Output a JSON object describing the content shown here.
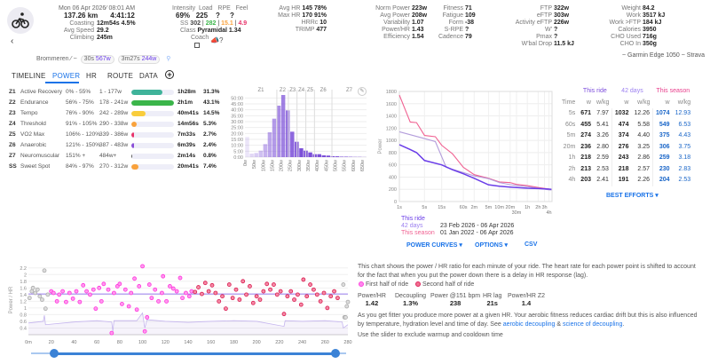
{
  "header": {
    "date": "Mon 06 Apr 2026",
    "time": "08:01 AM",
    "distance": "137.26 km",
    "duration": "4:41:12",
    "coasting_label": "Coasting",
    "coasting": "12m54s 4.5%",
    "avg_speed_label": "Avg Speed",
    "avg_speed": "29.2",
    "climbing_label": "Climbing",
    "climbing": "245m",
    "intensity_label": "Intensity",
    "intensity": "69%",
    "load_label": "Load",
    "load": "225",
    "rpe_label": "RPE",
    "rpe": "?",
    "feel_label": "Feel",
    "feel": "?",
    "ss_label": "SS",
    "ss": "302",
    "ss_g": "282",
    "ss_o": "15.1",
    "ss_r": "4.9",
    "class_label": "Class",
    "class": "Pyramidal 1.34",
    "coach_label": "Coach",
    "avg_hr_label": "Avg HR",
    "avg_hr": "145 78%",
    "max_hr_label": "Max HR",
    "max_hr": "170 91%",
    "hrrc_label": "HRRc",
    "hrrc": "10",
    "trimp_label": "TRIMP",
    "trimp": "477",
    "col4": [
      [
        "Norm Power",
        "223w"
      ],
      [
        "Avg Power",
        "208w"
      ],
      [
        "Variability",
        "1.07"
      ],
      [
        "Power/HR",
        "1.43"
      ],
      [
        "Efficiency",
        "1.54"
      ]
    ],
    "col5": [
      [
        "Fitness",
        "71"
      ],
      [
        "Fatigue",
        "109"
      ],
      [
        "Form",
        "-38"
      ],
      [
        "S-RPE",
        "?"
      ],
      [
        "Cadence",
        "79"
      ]
    ],
    "col6": [
      [
        "FTP",
        "322w"
      ],
      [
        "eFTP",
        "303w"
      ],
      [
        "Activity eFTP",
        "226w"
      ],
      [
        "W'",
        "?"
      ],
      [
        "Pmax",
        "?"
      ],
      [
        "W'bal Drop",
        "11.5 kJ"
      ]
    ],
    "col7": [
      [
        "Weight",
        "84.2"
      ],
      [
        "Work",
        "3517 kJ"
      ],
      [
        "Work >FTP",
        "184 kJ"
      ],
      [
        "Calories",
        "3950"
      ],
      [
        "CHO Used",
        "716g"
      ],
      [
        "CHO In",
        "350g"
      ]
    ],
    "device": "~ Garmin Edge 1050 ~ Strava",
    "segment": "Brommeren",
    "best1_t": "30s",
    "best1_w": "567w",
    "best2_t": "3m27s",
    "best2_w": "244w"
  },
  "tabs": [
    "TIMELINE",
    "POWER",
    "HR",
    "ROUTE",
    "DATA"
  ],
  "zones": [
    {
      "z": "Z1",
      "name": "Active Recovery",
      "pct": "0% - 55%",
      "w": "1 - 177w",
      "time": "1h28m",
      "share": "31.3%",
      "fill": 0.73,
      "color": "#3fb39a"
    },
    {
      "z": "Z2",
      "name": "Endurance",
      "pct": "56% - 75%",
      "w": "178 - 241w",
      "time": "2h1m",
      "share": "43.1%",
      "fill": 1.0,
      "color": "#3bb54a"
    },
    {
      "z": "Z3",
      "name": "Tempo",
      "pct": "76% - 90%",
      "w": "242 - 289w",
      "time": "40m41s",
      "share": "14.5%",
      "fill": 0.34,
      "color": "#f9cd3c"
    },
    {
      "z": "Z4",
      "name": "Threshold",
      "pct": "91% - 105%",
      "w": "290 - 338w",
      "time": "14m56s",
      "share": "5.3%",
      "fill": 0.12,
      "color": "#f9a23c"
    },
    {
      "z": "Z5",
      "name": "VO2 Max",
      "pct": "106% - 120%",
      "w": "339 - 386w",
      "time": "7m33s",
      "share": "2.7%",
      "fill": 0.06,
      "color": "#e8336b"
    },
    {
      "z": "Z6",
      "name": "Anaerobic",
      "pct": "121% - 150%",
      "w": "387 - 483w",
      "time": "6m39s",
      "share": "2.4%",
      "fill": 0.055,
      "color": "#8a4fd8"
    },
    {
      "z": "Z7",
      "name": "Neuromuscular",
      "pct": "151% +",
      "w": "484w+",
      "time": "2m14s",
      "share": "0.8%",
      "fill": 0.02,
      "color": "#555"
    },
    {
      "z": "SS",
      "name": "Sweet Spot",
      "pct": "84% - 97%",
      "w": "270 - 312w",
      "time": "20m41s",
      "share": "7.4%",
      "fill": 0.17,
      "color": "#f9a23c"
    }
  ],
  "chart_data": [
    {
      "type": "bar",
      "id": "power-histogram",
      "bin_width_w": 25,
      "zone_labels": [
        "Z1",
        "Z2",
        "Z3",
        "Z4",
        "Z5",
        "Z6",
        "Z7"
      ],
      "zone_bounds_w": [
        177,
        241,
        289,
        338,
        386,
        483
      ],
      "values_min": [
        17,
        3,
        3.5,
        5.5,
        11,
        21,
        32.5,
        43.5,
        52.5,
        39.5,
        21.5,
        13,
        7.5,
        5.5,
        4,
        2.5,
        2.5,
        1.5,
        1.3,
        0.8,
        0.7,
        0.4,
        0.4,
        0.3,
        0.2,
        0.2,
        0.1
      ],
      "x_ticks": [
        "0w",
        "50w",
        "100w",
        "150w",
        "200w",
        "250w",
        "300w",
        "350w",
        "400w",
        "450w",
        "500w",
        "550w",
        "600w",
        "650w"
      ],
      "y_ticks": [
        "0:00",
        "5:00",
        "10:00",
        "15:00",
        "20:00",
        "25:00",
        "30:00",
        "35:00",
        "40:00",
        "45:00",
        "50:00"
      ],
      "ylim": [
        0,
        54
      ]
    },
    {
      "type": "line",
      "id": "power-curve",
      "ylabel": "Power",
      "ylim": [
        0,
        1800
      ],
      "x_scale": "log",
      "y_ticks": [
        0,
        200,
        400,
        600,
        800,
        1000,
        1200,
        1400,
        1600,
        1800
      ],
      "x_ticks": [
        {
          "s": 1,
          "l": "1s"
        },
        {
          "s": 5,
          "l": "5s"
        },
        {
          "s": 15,
          "l": "15s"
        },
        {
          "s": 60,
          "l": "60s"
        },
        {
          "s": 120,
          "l": "2m"
        },
        {
          "s": 300,
          "l": "5m"
        },
        {
          "s": 600,
          "l": "10m"
        },
        {
          "s": 1200,
          "l": "20m"
        },
        {
          "s": 1800,
          "l": "30m"
        },
        {
          "s": 3600,
          "l": "1h"
        },
        {
          "s": 7200,
          "l": "2h"
        },
        {
          "s": 10800,
          "l": "3h"
        },
        {
          "s": 14400,
          "l": "4h"
        }
      ],
      "series": [
        {
          "name": "This season",
          "color": "#f06292",
          "points": [
            [
              1,
              1740
            ],
            [
              2,
              1300
            ],
            [
              3,
              1290
            ],
            [
              5,
              1080
            ],
            [
              10,
              1060
            ],
            [
              15,
              920
            ],
            [
              30,
              780
            ],
            [
              60,
              560
            ],
            [
              120,
              440
            ],
            [
              300,
              380
            ],
            [
              600,
              320
            ],
            [
              1200,
              310
            ],
            [
              1800,
              280
            ],
            [
              3600,
              260
            ],
            [
              7200,
              230
            ],
            [
              14400,
              204
            ],
            [
              17000,
              200
            ]
          ]
        },
        {
          "name": "42 days",
          "color": "#b39ddb",
          "points": [
            [
              1,
              1140
            ],
            [
              5,
              1030
            ],
            [
              10,
              980
            ],
            [
              20,
              560
            ],
            [
              60,
              474
            ],
            [
              120,
              420
            ],
            [
              300,
              374
            ],
            [
              600,
              310
            ],
            [
              1200,
              276
            ],
            [
              3600,
              243
            ],
            [
              7200,
              218
            ],
            [
              14400,
              191
            ],
            [
              17000,
              190
            ]
          ]
        },
        {
          "name": "This ride",
          "color": "#6a3de8",
          "points": [
            [
              1,
              930
            ],
            [
              2,
              850
            ],
            [
              3,
              800
            ],
            [
              5,
              671
            ],
            [
              15,
              600
            ],
            [
              30,
              520
            ],
            [
              60,
              455
            ],
            [
              120,
              380
            ],
            [
              300,
              274
            ],
            [
              600,
              250
            ],
            [
              1200,
              236
            ],
            [
              3600,
              218
            ],
            [
              7200,
              213
            ],
            [
              14400,
              203
            ],
            [
              16800,
              200
            ]
          ]
        }
      ]
    },
    {
      "type": "scatter",
      "id": "power-hr",
      "ylabel": "Power / HR",
      "ylim": [
        0.2,
        2.3
      ],
      "xlim": [
        0,
        280
      ],
      "y_ticks": [
        0.4,
        0.6,
        0.8,
        1.0,
        1.2,
        1.4,
        1.6,
        1.8,
        2.0,
        2.2
      ],
      "x_ticks": [
        "0m",
        "20",
        "40",
        "60",
        "80",
        "100",
        "120",
        "140",
        "160",
        "180",
        "200",
        "220",
        "240",
        "260",
        "280"
      ],
      "trend": 1.42,
      "excluded": [
        [
          1,
          1.3
        ],
        [
          3,
          1.5
        ],
        [
          4,
          1.6
        ],
        [
          6,
          1.45
        ],
        [
          8,
          1.55
        ],
        [
          10,
          1.35
        ],
        [
          12,
          1.25
        ],
        [
          14,
          2.12
        ],
        [
          15,
          0.98
        ],
        [
          17,
          1.4
        ],
        [
          276,
          1.7
        ],
        [
          277,
          0.72
        ],
        [
          278,
          0.72
        ],
        [
          279,
          1.05
        ],
        [
          280,
          1.18
        ]
      ],
      "first_half": [
        [
          20,
          1.5
        ],
        [
          22,
          1.45
        ],
        [
          25,
          1.2
        ],
        [
          27,
          1.4
        ],
        [
          30,
          1.5
        ],
        [
          33,
          1.18
        ],
        [
          36,
          1.45
        ],
        [
          39,
          1.28
        ],
        [
          42,
          1.5
        ],
        [
          45,
          1.18
        ],
        [
          48,
          1.68
        ],
        [
          51,
          1.5
        ],
        [
          54,
          1.4
        ],
        [
          57,
          1.55
        ],
        [
          59,
          0.98
        ],
        [
          62,
          1.6
        ],
        [
          64,
          1.2
        ],
        [
          66,
          1.72
        ],
        [
          70,
          1.55
        ],
        [
          73,
          0.25
        ],
        [
          75,
          1.45
        ],
        [
          78,
          1.65
        ],
        [
          80,
          1.72
        ],
        [
          82,
          1.12
        ],
        [
          85,
          1.55
        ],
        [
          88,
          1.05
        ],
        [
          90,
          1.45
        ],
        [
          93,
          1.88
        ],
        [
          95,
          0.95
        ],
        [
          97,
          1.65
        ],
        [
          100,
          2.25
        ],
        [
          102,
          0.3
        ],
        [
          104,
          0.72
        ],
        [
          106,
          1.7
        ],
        [
          108,
          1.3
        ],
        [
          111,
          1.55
        ],
        [
          114,
          1.2
        ],
        [
          117,
          1.45
        ],
        [
          118,
          1.95
        ],
        [
          121,
          1.2
        ],
        [
          124,
          1.65
        ],
        [
          127,
          1.58
        ],
        [
          130,
          1.5
        ],
        [
          133,
          1.9
        ],
        [
          135,
          1.3
        ],
        [
          138,
          1.45
        ],
        [
          141,
          1.35
        ],
        [
          143,
          1.5
        ]
      ],
      "second_half": [
        [
          146,
          1.48
        ],
        [
          149,
          1.62
        ],
        [
          152,
          1.42
        ],
        [
          155,
          1.75
        ],
        [
          158,
          1.5
        ],
        [
          161,
          1.68
        ],
        [
          164,
          1.45
        ],
        [
          167,
          1.2
        ],
        [
          170,
          1.35
        ],
        [
          173,
          0.98
        ],
        [
          176,
          1.7
        ],
        [
          179,
          1.3
        ],
        [
          182,
          1.55
        ],
        [
          185,
          1.25
        ],
        [
          188,
          1.8
        ],
        [
          191,
          1.4
        ],
        [
          194,
          1.65
        ],
        [
          197,
          1.15
        ],
        [
          200,
          1.35
        ],
        [
          203,
          1.25
        ],
        [
          206,
          1.5
        ],
        [
          209,
          1.72
        ],
        [
          212,
          1.55
        ],
        [
          215,
          1.7
        ],
        [
          218,
          1.4
        ],
        [
          221,
          1.5
        ],
        [
          224,
          0.82
        ],
        [
          227,
          1.35
        ],
        [
          230,
          1.5
        ],
        [
          233,
          1.25
        ],
        [
          236,
          1.4
        ],
        [
          239,
          1.1
        ],
        [
          241,
          1.85
        ],
        [
          244,
          1.35
        ],
        [
          247,
          1.7
        ],
        [
          250,
          1.55
        ],
        [
          253,
          1.4
        ],
        [
          256,
          1.2
        ],
        [
          259,
          1.45
        ],
        [
          262,
          1.0
        ],
        [
          265,
          1.35
        ],
        [
          268,
          1.5
        ],
        [
          271,
          1.3
        ]
      ],
      "lower_series": [
        [
          0,
          0.55
        ],
        [
          13,
          0.6
        ],
        [
          14,
          0.78
        ],
        [
          15,
          0.5
        ],
        [
          40,
          0.58
        ],
        [
          60,
          0.62
        ],
        [
          73,
          0.58
        ],
        [
          74,
          0.3
        ],
        [
          75,
          0.62
        ],
        [
          95,
          0.62
        ],
        [
          100,
          0.85
        ],
        [
          102,
          0.4
        ],
        [
          104,
          0.65
        ],
        [
          120,
          0.6
        ],
        [
          140,
          0.57
        ],
        [
          160,
          0.6
        ],
        [
          180,
          0.62
        ],
        [
          200,
          0.6
        ],
        [
          224,
          0.45
        ],
        [
          225,
          0.62
        ],
        [
          240,
          0.6
        ],
        [
          260,
          0.62
        ],
        [
          275,
          0.58
        ],
        [
          276,
          0.4
        ],
        [
          280,
          0.5
        ]
      ]
    }
  ],
  "power_curve": {
    "legend": [
      {
        "label": "This ride",
        "range": ""
      },
      {
        "label": "42 days",
        "range": "23 Feb 2026 - 06 Apr 2026"
      },
      {
        "label": "This season",
        "range": "01 Jan 2022 - 06 Apr 2026"
      }
    ],
    "btn_curves": "POWER CURVES",
    "btn_options": "OPTIONS",
    "btn_csv": "CSV"
  },
  "best_efforts": {
    "headers": [
      "This ride",
      "42 days",
      "This season"
    ],
    "time_label": "Time",
    "w": "w",
    "wkg": "w/kg",
    "rows": [
      [
        "5s",
        "671",
        "7.97",
        "1032",
        "12.26",
        "1074",
        "12.93"
      ],
      [
        "60s",
        "455",
        "5.41",
        "474",
        "5.58",
        "549",
        "6.53"
      ],
      [
        "5m",
        "274",
        "3.26",
        "374",
        "4.40",
        "375",
        "4.43"
      ],
      [
        "20m",
        "236",
        "2.80",
        "276",
        "3.25",
        "306",
        "3.75"
      ],
      [
        "1h",
        "218",
        "2.59",
        "243",
        "2.86",
        "259",
        "3.18"
      ],
      [
        "2h",
        "213",
        "2.53",
        "218",
        "2.57",
        "230",
        "2.83"
      ],
      [
        "4h",
        "203",
        "2.41",
        "191",
        "2.26",
        "204",
        "2.53"
      ]
    ],
    "button": "BEST EFFORTS"
  },
  "power_hr": {
    "intro": "This chart shows the power / HR ratio for each minute of your ride. The heart rate for each power point is shifted to account for the fact that when you put the power down there is a delay in HR response (lag).",
    "legend_first": "First half of ride",
    "legend_second": "Second half of ride",
    "stats": [
      [
        "Power/HR",
        "1.42"
      ],
      [
        "Decoupling",
        "1.3%"
      ],
      [
        "Power @151 bpm",
        "238"
      ],
      [
        "HR lag",
        "21s"
      ],
      [
        "Power/HR Z2",
        "1.4"
      ]
    ],
    "fitness_text": "As you get fitter you produce more power at a given HR. Your aerobic fitness reduces cardiac drift but this is also influenced by temperature, hydration level and time of day. See ",
    "link1": "aerobic decoupling",
    "amp": " & ",
    "link2": "science of decoupling",
    "period": ".",
    "slider_text": "Use the slider to exclude warmup and cooldown time",
    "slider_range": [
      14,
      271
    ]
  },
  "colors": {
    "accent": "#1a73e8",
    "purple": "#6a3de8",
    "pink": "#f06292",
    "first_half": "#ff44dd",
    "second_half": "#e0245e"
  }
}
